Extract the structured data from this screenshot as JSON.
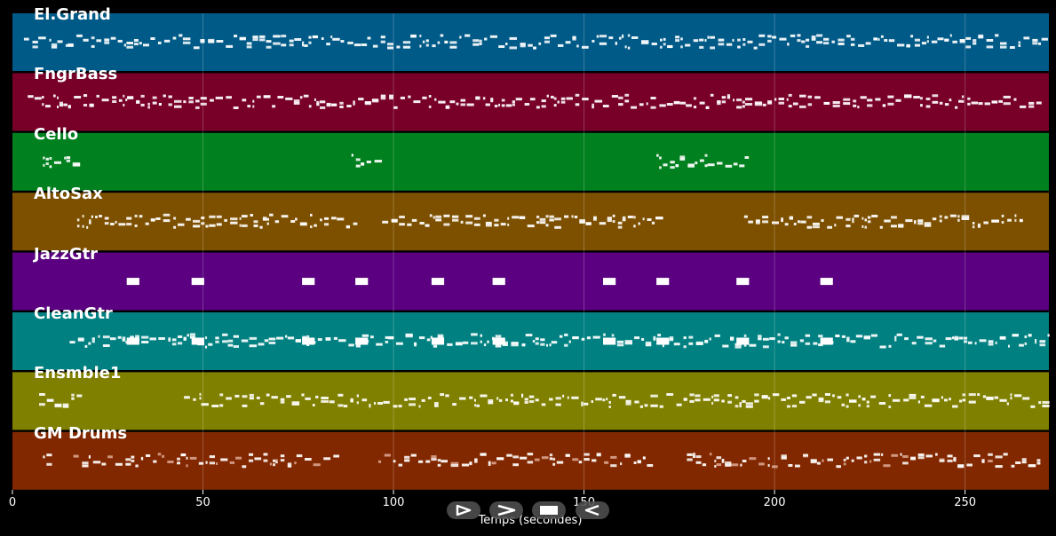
{
  "chart_data": {
    "type": "piano-roll",
    "xlabel": "Temps (secondes)",
    "xlim": [
      0,
      272
    ],
    "xticks": [
      "0",
      "50",
      "100",
      "150",
      "200",
      "250"
    ],
    "xtick_values": [
      0,
      50,
      100,
      150,
      200,
      250
    ],
    "grid": true,
    "tracks": [
      {
        "name": "El.Grand",
        "color": "#005a87",
        "segments": [
          [
            3,
            272
          ]
        ]
      },
      {
        "name": "FngrBass",
        "color": "#780028",
        "segments": [
          [
            4,
            270
          ]
        ]
      },
      {
        "name": "Cello",
        "color": "#00801e",
        "segments": [
          [
            8,
            17
          ],
          [
            89,
            97
          ],
          [
            169,
            193
          ]
        ]
      },
      {
        "name": "AltoSax",
        "color": "#7d5000",
        "segments": [
          [
            17,
            90
          ],
          [
            97,
            170
          ],
          [
            192,
            265
          ]
        ]
      },
      {
        "name": "JazzGtr",
        "color": "#5a0080",
        "blocks": [
          30,
          47,
          76,
          90,
          110,
          126,
          155,
          169,
          190,
          212
        ]
      },
      {
        "name": "CleanGtr",
        "color": "#008080",
        "segments": [
          [
            15,
            272
          ]
        ],
        "blocks": [
          30,
          47,
          76,
          90,
          110,
          126,
          155,
          169,
          190,
          212
        ]
      },
      {
        "name": "Ensmble1",
        "color": "#808000",
        "segments": [
          [
            7,
            17
          ],
          [
            45,
            272
          ]
        ]
      },
      {
        "name": "GM Drums",
        "color": "#822800",
        "segments": [
          [
            8,
            11
          ],
          [
            16,
            85
          ],
          [
            96,
            168
          ],
          [
            177,
            270
          ]
        ]
      }
    ]
  },
  "transport": {
    "play_icon": "play-icon",
    "forward_icon": "forward-icon",
    "stop_icon": "stop-icon",
    "rewind_icon": "rewind-icon"
  }
}
